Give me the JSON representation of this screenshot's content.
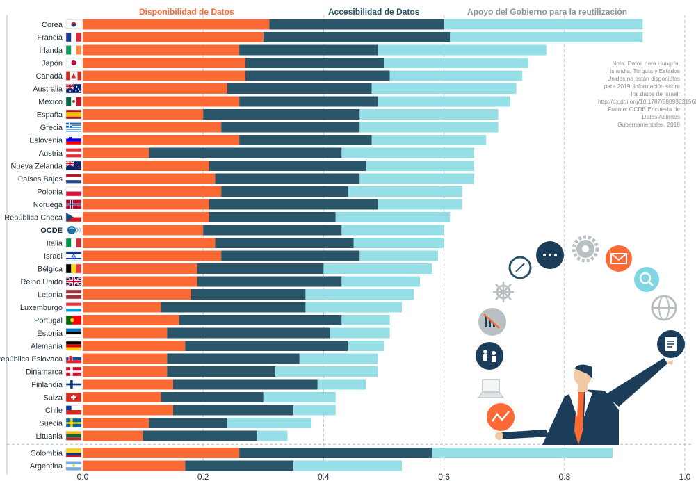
{
  "colors": {
    "availability": "#fb6a35",
    "accessibility": "#2a5468",
    "support": "#96dfe6",
    "grid": "#b9bfc4",
    "text": "#1e2d3a"
  },
  "note": {
    "text": "Nota: Datos para Hungría, Islandia, Turquía y Estados Unidos no están disponibles para 2019. Información sobre los datos de Israel: http://dx.doi.org/10.1787/888932315602.",
    "source": "Fuente: OCDE Encuesta de Datos Abiertos Gubernamentales, 2018"
  },
  "chart_data": {
    "type": "bar",
    "orientation": "horizontal",
    "stacked": true,
    "xlim": [
      0,
      1
    ],
    "x_ticks": [
      "0.0",
      "0.2",
      "0.4",
      "0.6",
      "0.8",
      "1.0"
    ],
    "grid": "vertical dashed",
    "legend_position": "top",
    "series": [
      {
        "name": "Disponibilidad de Datos",
        "color": "#fb6a35"
      },
      {
        "name": "Accesibilidad de Datos",
        "color": "#2a5468"
      },
      {
        "name": "Apoyo del Gobierno para la reutilización",
        "color": "#96dfe6"
      }
    ],
    "categories": [
      {
        "label": "Corea",
        "flag": "kr",
        "values": [
          0.31,
          0.29,
          0.33
        ]
      },
      {
        "label": "Francia",
        "flag": "fr",
        "values": [
          0.3,
          0.31,
          0.32
        ]
      },
      {
        "label": "Irlanda",
        "flag": "ie",
        "values": [
          0.26,
          0.23,
          0.28
        ]
      },
      {
        "label": "Japón",
        "flag": "jp",
        "values": [
          0.27,
          0.23,
          0.24
        ]
      },
      {
        "label": "Canadá",
        "flag": "ca",
        "values": [
          0.27,
          0.24,
          0.22
        ]
      },
      {
        "label": "Australia",
        "flag": "au",
        "values": [
          0.24,
          0.24,
          0.24
        ]
      },
      {
        "label": "México",
        "flag": "mx",
        "values": [
          0.26,
          0.23,
          0.22
        ]
      },
      {
        "label": "España",
        "flag": "es",
        "values": [
          0.2,
          0.26,
          0.23
        ]
      },
      {
        "label": "Grecia",
        "flag": "gr",
        "values": [
          0.23,
          0.23,
          0.23
        ]
      },
      {
        "label": "Eslovenia",
        "flag": "si",
        "values": [
          0.26,
          0.22,
          0.19
        ]
      },
      {
        "label": "Austria",
        "flag": "at",
        "values": [
          0.11,
          0.32,
          0.22
        ]
      },
      {
        "label": "Nueva Zelanda",
        "flag": "nz",
        "values": [
          0.21,
          0.26,
          0.18
        ]
      },
      {
        "label": "Países Bajos",
        "flag": "nl",
        "values": [
          0.22,
          0.24,
          0.19
        ]
      },
      {
        "label": "Polonia",
        "flag": "pl",
        "values": [
          0.23,
          0.21,
          0.19
        ]
      },
      {
        "label": "Noruega",
        "flag": "no",
        "values": [
          0.21,
          0.28,
          0.14
        ]
      },
      {
        "label": "República Checa",
        "flag": "cz",
        "values": [
          0.21,
          0.21,
          0.19
        ]
      },
      {
        "label": "OCDE",
        "flag": "oecd",
        "bold": true,
        "values": [
          0.2,
          0.23,
          0.17
        ]
      },
      {
        "label": "Italia",
        "flag": "it",
        "values": [
          0.22,
          0.23,
          0.15
        ]
      },
      {
        "label": "Israel",
        "flag": "il",
        "values": [
          0.23,
          0.23,
          0.13
        ]
      },
      {
        "label": "Bélgica",
        "flag": "be",
        "values": [
          0.19,
          0.21,
          0.18
        ]
      },
      {
        "label": "Reino Unido",
        "flag": "gb",
        "values": [
          0.19,
          0.24,
          0.13
        ]
      },
      {
        "label": "Letonia",
        "flag": "lv",
        "values": [
          0.18,
          0.19,
          0.18
        ]
      },
      {
        "label": "Luxemburgo",
        "flag": "lu",
        "values": [
          0.13,
          0.24,
          0.16
        ]
      },
      {
        "label": "Portugal",
        "flag": "pt",
        "values": [
          0.16,
          0.27,
          0.08
        ]
      },
      {
        "label": "Estonia",
        "flag": "ee",
        "values": [
          0.14,
          0.27,
          0.1
        ]
      },
      {
        "label": "Alemania",
        "flag": "de",
        "values": [
          0.17,
          0.27,
          0.06
        ]
      },
      {
        "label": "República Eslovaca",
        "flag": "sk",
        "values": [
          0.14,
          0.22,
          0.13
        ]
      },
      {
        "label": "Dinamarca",
        "flag": "dk",
        "values": [
          0.14,
          0.18,
          0.17
        ]
      },
      {
        "label": "Finlandia",
        "flag": "fi",
        "values": [
          0.15,
          0.24,
          0.08
        ]
      },
      {
        "label": "Suiza",
        "flag": "ch",
        "values": [
          0.13,
          0.17,
          0.12
        ]
      },
      {
        "label": "Chile",
        "flag": "cl",
        "values": [
          0.15,
          0.2,
          0.07
        ]
      },
      {
        "label": "Suecia",
        "flag": "se",
        "values": [
          0.11,
          0.13,
          0.14
        ]
      },
      {
        "label": "Lituania",
        "flag": "lt",
        "values": [
          0.1,
          0.19,
          0.05
        ]
      },
      {
        "label": "Colombia",
        "flag": "co",
        "group": "partner",
        "values": [
          0.26,
          0.32,
          0.3
        ]
      },
      {
        "label": "Argentina",
        "flag": "ar",
        "group": "partner",
        "values": [
          0.17,
          0.18,
          0.18
        ]
      }
    ]
  }
}
